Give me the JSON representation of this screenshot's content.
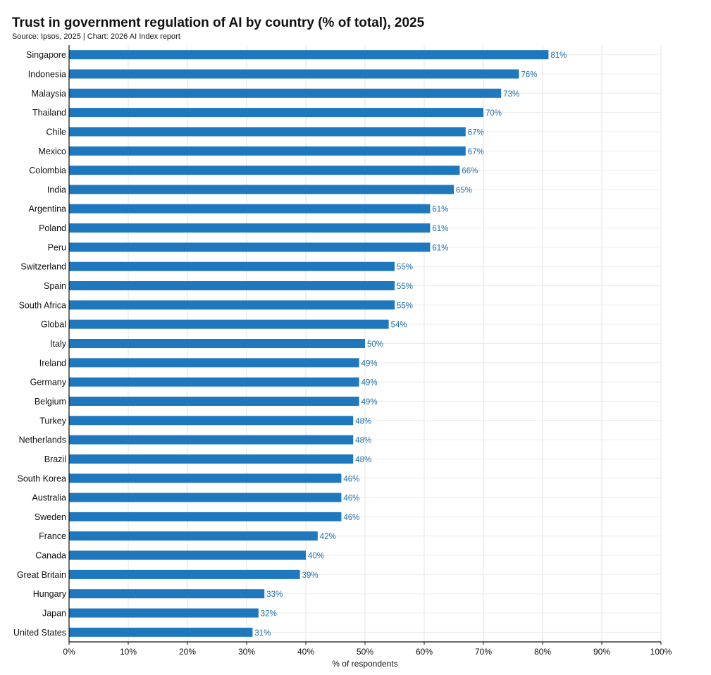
{
  "title": "Trust in government regulation of AI by country (% of total), 2025",
  "source": "Source: Ipsos, 2025 | Chart: 2026 AI Index report",
  "chart_data": {
    "type": "bar",
    "orientation": "horizontal",
    "title": "Trust in government regulation of AI by country (% of total), 2025",
    "subtitle": "Source: Ipsos, 2025 | Chart: 2026 AI Index report",
    "xlabel": "% of respondents",
    "ylabel": "",
    "xlim": [
      0,
      100
    ],
    "xticks": [
      "0%",
      "10%",
      "20%",
      "30%",
      "40%",
      "50%",
      "60%",
      "70%",
      "80%",
      "90%",
      "100%"
    ],
    "grid": true,
    "bar_color": "#1f77bd",
    "label_color": "#1f6fad",
    "categories": [
      "Singapore",
      "Indonesia",
      "Malaysia",
      "Thailand",
      "Chile",
      "Mexico",
      "Colombia",
      "India",
      "Argentina",
      "Poland",
      "Peru",
      "Switzerland",
      "Spain",
      "South Africa",
      "Global",
      "Italy",
      "Ireland",
      "Germany",
      "Belgium",
      "Turkey",
      "Netherlands",
      "Brazil",
      "South Korea",
      "Australia",
      "Sweden",
      "France",
      "Canada",
      "Great Britain",
      "Hungary",
      "Japan",
      "United States"
    ],
    "values": [
      81,
      76,
      73,
      70,
      67,
      67,
      66,
      65,
      61,
      61,
      61,
      55,
      55,
      55,
      54,
      50,
      49,
      49,
      49,
      48,
      48,
      48,
      46,
      46,
      46,
      42,
      40,
      39,
      33,
      32,
      31
    ],
    "value_labels": [
      "81%",
      "76%",
      "73%",
      "70%",
      "67%",
      "67%",
      "66%",
      "65%",
      "61%",
      "61%",
      "61%",
      "55%",
      "55%",
      "55%",
      "54%",
      "50%",
      "49%",
      "49%",
      "49%",
      "48%",
      "48%",
      "48%",
      "46%",
      "46%",
      "46%",
      "42%",
      "40%",
      "39%",
      "33%",
      "32%",
      "31%"
    ]
  }
}
